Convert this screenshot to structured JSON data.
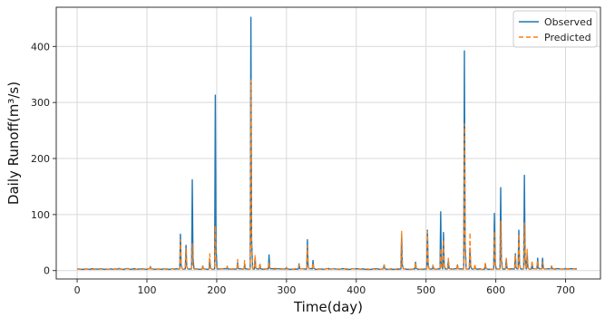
{
  "chart_data": {
    "type": "line",
    "title": "",
    "xlabel": "Time(day)",
    "ylabel": "Daily Runoff(m³/s)",
    "xlim": [
      -30,
      750
    ],
    "ylim": [
      -15,
      470
    ],
    "xticks": [
      0,
      100,
      200,
      300,
      400,
      500,
      600,
      700
    ],
    "yticks": [
      0,
      100,
      200,
      300,
      400
    ],
    "grid": true,
    "legend_position": "top-right",
    "baseline": 2,
    "series": [
      {
        "name": "Observed",
        "color": "#1f77b4",
        "dash": "",
        "peaks": [
          [
            60,
            4
          ],
          [
            105,
            7
          ],
          [
            148,
            65
          ],
          [
            156,
            45
          ],
          [
            165,
            162
          ],
          [
            180,
            8
          ],
          [
            190,
            20
          ],
          [
            198,
            313
          ],
          [
            215,
            6
          ],
          [
            230,
            14
          ],
          [
            240,
            10
          ],
          [
            249,
            452
          ],
          [
            255,
            22
          ],
          [
            262,
            10
          ],
          [
            275,
            28
          ],
          [
            300,
            5
          ],
          [
            318,
            12
          ],
          [
            330,
            55
          ],
          [
            338,
            18
          ],
          [
            360,
            4
          ],
          [
            440,
            10
          ],
          [
            465,
            65
          ],
          [
            485,
            15
          ],
          [
            502,
            72
          ],
          [
            510,
            8
          ],
          [
            521,
            105
          ],
          [
            525,
            68
          ],
          [
            532,
            18
          ],
          [
            545,
            10
          ],
          [
            555,
            392
          ],
          [
            563,
            40
          ],
          [
            570,
            8
          ],
          [
            585,
            12
          ],
          [
            598,
            102
          ],
          [
            607,
            148
          ],
          [
            615,
            20
          ],
          [
            628,
            30
          ],
          [
            633,
            72
          ],
          [
            641,
            170
          ],
          [
            645,
            30
          ],
          [
            652,
            14
          ],
          [
            660,
            22
          ],
          [
            667,
            22
          ],
          [
            680,
            8
          ],
          [
            700,
            4
          ]
        ]
      },
      {
        "name": "Predicted",
        "color": "#ff7f0e",
        "dash": "5,3",
        "peaks": [
          [
            60,
            5
          ],
          [
            105,
            9
          ],
          [
            148,
            55
          ],
          [
            156,
            40
          ],
          [
            165,
            48
          ],
          [
            180,
            10
          ],
          [
            190,
            30
          ],
          [
            198,
            80
          ],
          [
            215,
            8
          ],
          [
            230,
            20
          ],
          [
            240,
            18
          ],
          [
            249,
            340
          ],
          [
            255,
            28
          ],
          [
            262,
            14
          ],
          [
            275,
            15
          ],
          [
            300,
            6
          ],
          [
            318,
            10
          ],
          [
            330,
            45
          ],
          [
            338,
            14
          ],
          [
            360,
            5
          ],
          [
            440,
            10
          ],
          [
            465,
            70
          ],
          [
            485,
            15
          ],
          [
            502,
            70
          ],
          [
            510,
            10
          ],
          [
            521,
            40
          ],
          [
            525,
            55
          ],
          [
            532,
            22
          ],
          [
            545,
            12
          ],
          [
            555,
            262
          ],
          [
            563,
            68
          ],
          [
            570,
            12
          ],
          [
            585,
            14
          ],
          [
            598,
            70
          ],
          [
            607,
            88
          ],
          [
            615,
            22
          ],
          [
            628,
            28
          ],
          [
            633,
            65
          ],
          [
            641,
            85
          ],
          [
            645,
            38
          ],
          [
            652,
            18
          ],
          [
            660,
            18
          ],
          [
            667,
            15
          ],
          [
            680,
            8
          ],
          [
            700,
            5
          ]
        ]
      }
    ]
  }
}
